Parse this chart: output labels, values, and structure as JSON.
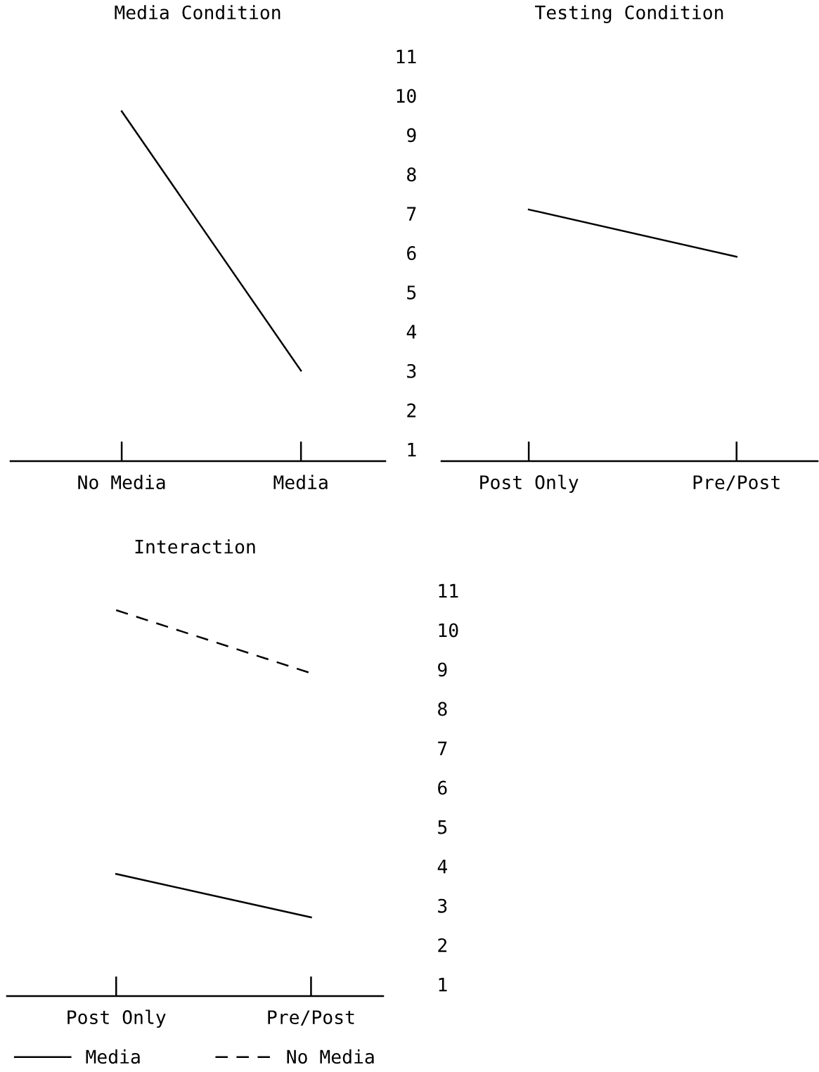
{
  "chart_data": [
    {
      "type": "line",
      "title": "Media Condition",
      "categories": [
        "No Media",
        "Media"
      ],
      "series": [
        {
          "color": "#000000",
          "values": [
            9.6,
            3.0
          ]
        }
      ],
      "ylim": [
        0.7,
        11
      ],
      "yticks": [
        1,
        2,
        3,
        4,
        5,
        6,
        7,
        8,
        9,
        10,
        11
      ],
      "tick_labels": "x",
      "grid": false,
      "legend": false,
      "marker": "none",
      "line_style": "solid"
    },
    {
      "type": "line",
      "title": "Testing Condition",
      "categories": [
        "Post Only",
        "Pre/Post"
      ],
      "series": [
        {
          "color": "#000000",
          "values": [
            7.1,
            5.9
          ]
        }
      ],
      "ylim": [
        0.7,
        11
      ],
      "yticks": [
        1,
        2,
        3,
        4,
        5,
        6,
        7,
        8,
        9,
        10,
        11
      ],
      "grid": false,
      "legend": false,
      "marker": "none",
      "line_style": "solid"
    },
    {
      "type": "line",
      "title": "Interaction",
      "categories": [
        "Post Only",
        "Pre/Post"
      ],
      "series": [
        {
          "name": "Media",
          "color": "#000000",
          "values": [
            3.8,
            2.7
          ],
          "line_style": "solid"
        },
        {
          "name": "No Media",
          "color": "#000000",
          "values": [
            10.5,
            8.9
          ],
          "line_style": "dashed"
        }
      ],
      "ylim": [
        0.7,
        11
      ],
      "yticks": [
        1,
        2,
        3,
        4,
        5,
        6,
        7,
        8,
        9,
        10,
        11
      ],
      "grid": false,
      "legend": "bottom",
      "marker": "none"
    }
  ]
}
